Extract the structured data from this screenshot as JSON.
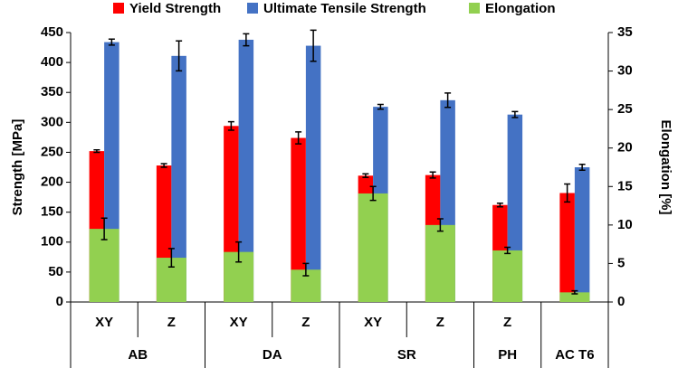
{
  "chart_data": {
    "type": "bar",
    "groups": [
      {
        "name": "AB",
        "categories": [
          "XY",
          "Z"
        ]
      },
      {
        "name": "DA",
        "categories": [
          "XY",
          "Z"
        ]
      },
      {
        "name": "SR",
        "categories": [
          "XY",
          "Z"
        ]
      },
      {
        "name": "PH",
        "categories": [
          "Z"
        ]
      },
      {
        "name": "AC T6",
        "categories": [
          null
        ]
      }
    ],
    "series": [
      {
        "name": "Yield Strength",
        "color": "#ff0000",
        "values": [
          252,
          228,
          294,
          274,
          211,
          212,
          162,
          182
        ],
        "errors": [
          2,
          3,
          7,
          10,
          3,
          5,
          3,
          15
        ]
      },
      {
        "name": "Ultimate Tensile Strength",
        "color": "#4472c4",
        "values": [
          434,
          411,
          438,
          428,
          326,
          337,
          313,
          225
        ],
        "errors": [
          5,
          25,
          10,
          26,
          4,
          12,
          5,
          5
        ]
      },
      {
        "name": "Elongation",
        "color": "#92d050",
        "axis": "y2",
        "values": [
          9.5,
          5.75,
          6.5,
          4.2,
          14.1,
          10,
          6.7,
          1.25
        ],
        "errors": [
          1.4,
          1.2,
          1.3,
          0.8,
          0.9,
          0.8,
          0.4,
          0.2
        ]
      }
    ],
    "y_label": "Strength [MPa]",
    "y2_label": "Elongation [%]",
    "ylim": [
      0,
      450
    ],
    "yticks": [
      0,
      50,
      100,
      150,
      200,
      250,
      300,
      350,
      400,
      450
    ],
    "y2lim": [
      0,
      35
    ],
    "y2ticks": [
      0,
      5,
      10,
      15,
      20,
      25,
      30,
      35
    ],
    "grid": false,
    "legend": "top"
  }
}
